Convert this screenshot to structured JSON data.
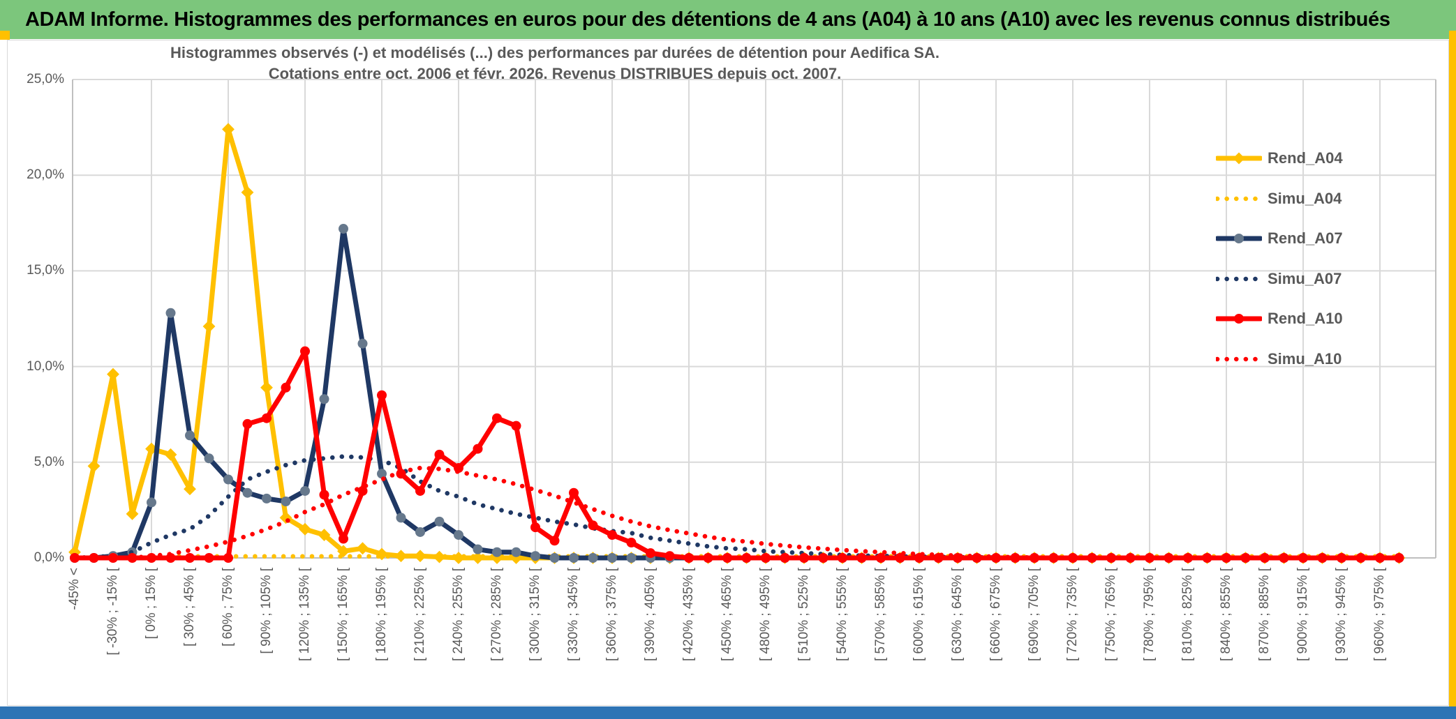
{
  "header": {
    "title": "ADAM Informe. Histogrammes des performances en euros pour des détentions de 4 ans (A04) à 10 ans (A10) avec les revenus connus distribués",
    "bg_color": "#7CC67C"
  },
  "accents": {
    "gold_color": "#FFC000",
    "footer_bar_color": "#2E74B5",
    "grid_color": "#D9D9D9",
    "axis_color": "#BFBFBF",
    "text_color": "#595959"
  },
  "chart_data": {
    "type": "line",
    "title_line1": "Histogrammes observés (-) et modélisés (...) des performances par durées de détention pour Aedifica SA.",
    "title_line2": "Cotations entre oct. 2006 et févr. 2026. Revenus DISTRIBUES depuis oct. 2007.",
    "y_ticks": [
      "0,0%",
      "5,0%",
      "10,0%",
      "15,0%",
      "20,0%",
      "25,0%"
    ],
    "ylim": [
      0,
      25
    ],
    "grid": true,
    "legend_position": "right",
    "n_bins": 70,
    "x_labels_every_n_bins": 2,
    "categories_visible": [
      "-45% <",
      "[ -30% ; -15% [",
      "[ 0% ; 15% [",
      "[ 30% ; 45% [",
      "[ 60% ; 75% [",
      "[ 90% ; 105% [",
      "[ 120% ; 135% [",
      "[ 150% ; 165% [",
      "[ 180% ; 195% [",
      "[ 210% ; 225% [",
      "[ 240% ; 255% [",
      "[ 270% ; 285% [",
      "[ 300% ; 315% [",
      "[ 330% ; 345% [",
      "[ 360% ; 375% [",
      "[ 390% ; 405% [",
      "[ 420% ; 435% [",
      "[ 450% ; 465% [",
      "[ 480% ; 495% [",
      "[ 510% ; 525% [",
      "[ 540% ; 555% [",
      "[ 570% ; 585% [",
      "[ 600% ; 615% [",
      "[ 630% ; 645% [",
      "[ 660% ; 675% [",
      "[ 690% ; 705% [",
      "[ 720% ; 735% [",
      "[ 750% ; 765% [",
      "[ 780% ; 795% [",
      "[ 810% ; 825% [",
      "[ 840% ; 855% [",
      "[ 870% ; 885% [",
      "[ 900% ; 915% [",
      "[ 930% ; 945% [",
      "[ 960% ; 975% ["
    ],
    "series": [
      {
        "name": "Rend_A04",
        "color": "#FFC000",
        "marker_color": "#FFC000",
        "style": "solid",
        "marker": "diamond",
        "values": [
          0.3,
          4.8,
          9.6,
          2.3,
          5.7,
          5.4,
          3.6,
          12.1,
          22.4,
          19.1,
          8.9,
          2.1,
          1.5,
          1.2,
          0.35,
          0.5,
          0.2,
          0.1,
          0.1,
          0.05,
          0,
          0,
          0,
          0,
          0,
          0,
          0,
          0,
          0,
          0,
          0,
          0,
          0,
          0,
          0,
          0,
          0,
          0,
          0,
          0,
          0,
          0,
          0,
          0,
          0,
          0,
          0,
          0,
          0,
          0,
          0,
          0,
          0,
          0,
          0,
          0,
          0,
          0,
          0,
          0,
          0,
          0,
          0,
          0,
          0,
          0,
          0,
          0,
          0,
          0
        ]
      },
      {
        "name": "Simu_A04",
        "color": "#FFC000",
        "style": "dotted",
        "marker": "none",
        "values": [
          0,
          0,
          0,
          0,
          0.08,
          0.08,
          0.08,
          0.08,
          0.08,
          0.08,
          0.08,
          0.08,
          0.08,
          0.08,
          0.08,
          0.08,
          0.08,
          0.08,
          0.08,
          0.08,
          0.08,
          0.08,
          0.08,
          0.08,
          0.08,
          0.08,
          0.08,
          0.08,
          0.08,
          0.08,
          0.08,
          0.08,
          0.08,
          0.08,
          0.08,
          0.08,
          0.08,
          0.08,
          0.08,
          0.08,
          0.08,
          0.08,
          0.08,
          0.08,
          0.08,
          0.08,
          0.08,
          0.08,
          0.08,
          0.08,
          0.08,
          0.08,
          0.08,
          0.08,
          0.08,
          0.08,
          0.08,
          0.08,
          0.08,
          0.08,
          0.08,
          0.08,
          0.08,
          0.08,
          0.08,
          0.08,
          0.08,
          0.08,
          0.08,
          0.08
        ]
      },
      {
        "name": "Rend_A07",
        "color": "#1F3864",
        "marker_color": "#66788C",
        "style": "solid",
        "marker": "circle",
        "values": [
          0,
          0,
          0.1,
          0.3,
          2.9,
          12.8,
          6.4,
          5.2,
          4.1,
          3.4,
          3.1,
          2.95,
          3.5,
          8.3,
          17.2,
          11.2,
          4.4,
          2.1,
          1.35,
          1.9,
          1.2,
          0.45,
          0.3,
          0.3,
          0.1,
          0,
          0,
          0,
          0,
          0,
          0,
          0,
          0,
          0,
          0,
          0,
          0,
          0,
          0,
          0,
          0,
          0,
          0,
          0,
          0,
          0,
          0,
          0,
          0,
          0,
          0,
          0,
          0,
          0,
          0,
          0,
          0,
          0,
          0,
          0,
          0,
          0,
          0,
          0,
          0,
          0,
          0,
          0,
          0,
          0
        ]
      },
      {
        "name": "Simu_A07",
        "color": "#1F3864",
        "style": "dotted",
        "marker": "none",
        "values": [
          0,
          0.05,
          0.1,
          0.3,
          0.8,
          1.2,
          1.5,
          2.2,
          3.2,
          4.1,
          4.5,
          4.85,
          5.1,
          5.2,
          5.3,
          5.25,
          5.1,
          4.7,
          4.0,
          3.5,
          3.2,
          2.8,
          2.55,
          2.3,
          2.1,
          1.9,
          1.75,
          1.55,
          1.4,
          1.3,
          1.05,
          0.9,
          0.75,
          0.6,
          0.5,
          0.45,
          0.35,
          0.3,
          0.25,
          0.2,
          0.15,
          0.12,
          0.1,
          0.08,
          0.06,
          0.05,
          0.04,
          0.03,
          0.02,
          0,
          0,
          0,
          0,
          0,
          0,
          0,
          0,
          0,
          0,
          0,
          0,
          0,
          0,
          0,
          0,
          0,
          0,
          0,
          0,
          0
        ]
      },
      {
        "name": "Rend_A10",
        "color": "#FF0000",
        "marker_color": "#FF0000",
        "style": "solid",
        "marker": "circle",
        "values": [
          0,
          0,
          0,
          0,
          0,
          0,
          0,
          0,
          0,
          7.0,
          7.3,
          8.9,
          10.8,
          3.3,
          1.0,
          3.5,
          8.5,
          4.4,
          3.5,
          5.4,
          4.7,
          5.7,
          7.3,
          6.9,
          1.6,
          0.9,
          3.4,
          1.7,
          1.2,
          0.8,
          0.25,
          0.1,
          0,
          0,
          0,
          0,
          0,
          0,
          0,
          0,
          0,
          0,
          0,
          0,
          0,
          0,
          0,
          0,
          0,
          0,
          0,
          0,
          0,
          0,
          0,
          0,
          0,
          0,
          0,
          0,
          0,
          0,
          0,
          0,
          0,
          0,
          0,
          0,
          0,
          0
        ]
      },
      {
        "name": "Simu_A10",
        "color": "#FF0000",
        "style": "dotted",
        "marker": "none",
        "values": [
          0,
          0,
          0,
          0,
          0.1,
          0.2,
          0.4,
          0.6,
          0.85,
          1.15,
          1.5,
          1.9,
          2.4,
          2.8,
          3.3,
          3.7,
          4.1,
          4.5,
          4.7,
          4.65,
          4.5,
          4.3,
          4.1,
          3.85,
          3.55,
          3.25,
          2.9,
          2.55,
          2.2,
          1.9,
          1.65,
          1.45,
          1.28,
          1.1,
          0.95,
          0.85,
          0.73,
          0.64,
          0.55,
          0.48,
          0.41,
          0.35,
          0.3,
          0.25,
          0.2,
          0.16,
          0.12,
          0.09,
          0.06,
          0.04,
          0.02,
          0,
          0,
          0,
          0,
          0,
          0,
          0,
          0,
          0,
          0,
          0,
          0,
          0,
          0,
          0,
          0,
          0,
          0,
          0
        ]
      }
    ]
  },
  "legend": {
    "items": [
      "Rend_A04",
      "Simu_A04",
      "Rend_A07",
      "Simu_A07",
      "Rend_A10",
      "Simu_A10"
    ]
  }
}
